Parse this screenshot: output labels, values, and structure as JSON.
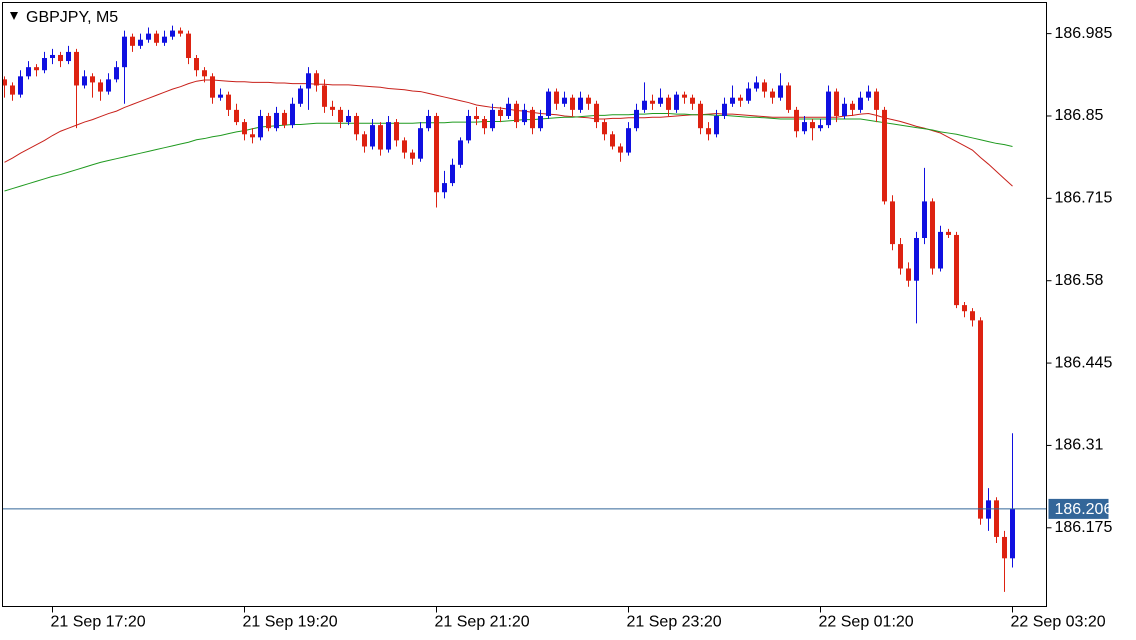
{
  "chart_data": {
    "type": "candlestick",
    "title": "GBPJPY, M5",
    "up_color": "#1010e0",
    "down_color": "#dd2211",
    "price_line_color": "#336699",
    "ylim": [
      186.046,
      187.036
    ],
    "yticks": [
      186.175,
      186.31,
      186.445,
      186.58,
      186.715,
      186.85,
      186.985
    ],
    "categories": [
      null,
      null,
      null,
      null,
      null,
      null,
      "21 Sep 17:20",
      null,
      null,
      null,
      null,
      null,
      null,
      null,
      null,
      null,
      null,
      null,
      null,
      null,
      null,
      null,
      null,
      null,
      null,
      null,
      null,
      null,
      null,
      null,
      "21 Sep 19:20",
      null,
      null,
      null,
      null,
      null,
      null,
      null,
      null,
      null,
      null,
      null,
      null,
      null,
      null,
      null,
      null,
      null,
      null,
      null,
      null,
      null,
      null,
      null,
      "21 Sep 21:20",
      null,
      null,
      null,
      null,
      null,
      null,
      null,
      null,
      null,
      null,
      null,
      null,
      null,
      null,
      null,
      null,
      null,
      null,
      null,
      null,
      null,
      null,
      null,
      "21 Sep 23:20",
      null,
      null,
      null,
      null,
      null,
      null,
      null,
      null,
      null,
      null,
      null,
      null,
      null,
      null,
      null,
      null,
      null,
      null,
      null,
      null,
      null,
      null,
      null,
      "22 Sep 01:20",
      null,
      null,
      null,
      null,
      null,
      null,
      null,
      null,
      null,
      null,
      null,
      null,
      null,
      null,
      null,
      null,
      null,
      null,
      null,
      null,
      null,
      null,
      null,
      "22 Sep 03:20"
    ],
    "candles": [
      [
        186.91,
        186.915,
        186.88,
        186.9
      ],
      [
        186.9,
        186.905,
        186.875,
        186.885
      ],
      [
        186.885,
        186.925,
        186.88,
        186.915
      ],
      [
        186.915,
        186.94,
        186.91,
        186.93
      ],
      [
        186.93,
        186.935,
        186.915,
        186.925
      ],
      [
        186.925,
        186.955,
        186.92,
        186.945
      ],
      [
        186.945,
        186.96,
        186.935,
        186.95
      ],
      [
        186.95,
        186.955,
        186.93,
        186.94
      ],
      [
        186.94,
        186.965,
        186.935,
        186.955
      ],
      [
        186.955,
        186.96,
        186.83,
        186.9
      ],
      [
        186.9,
        186.925,
        186.895,
        186.915
      ],
      [
        186.915,
        186.92,
        186.88,
        186.905
      ],
      [
        186.905,
        186.91,
        186.875,
        186.89
      ],
      [
        186.89,
        186.92,
        186.885,
        186.91
      ],
      [
        186.91,
        186.94,
        186.905,
        186.93
      ],
      [
        186.93,
        186.99,
        186.87,
        186.98
      ],
      [
        186.98,
        186.985,
        186.955,
        186.965
      ],
      [
        186.965,
        186.985,
        186.96,
        186.975
      ],
      [
        186.975,
        186.995,
        186.97,
        186.985
      ],
      [
        186.985,
        186.99,
        186.965,
        186.97
      ],
      [
        186.97,
        186.99,
        186.965,
        186.98
      ],
      [
        186.98,
        186.998,
        186.975,
        186.99
      ],
      [
        186.99,
        186.995,
        186.98,
        186.985
      ],
      [
        186.985,
        186.99,
        186.935,
        186.945
      ],
      [
        186.945,
        186.95,
        186.915,
        186.925
      ],
      [
        186.925,
        186.93,
        186.905,
        186.915
      ],
      [
        186.915,
        186.92,
        186.87,
        186.88
      ],
      [
        186.88,
        186.895,
        186.875,
        186.885
      ],
      [
        186.885,
        186.89,
        186.85,
        186.86
      ],
      [
        186.86,
        186.87,
        186.835,
        186.84
      ],
      [
        186.84,
        186.845,
        186.81,
        186.82
      ],
      [
        186.82,
        186.83,
        186.805,
        186.815
      ],
      [
        186.815,
        186.86,
        186.81,
        186.85
      ],
      [
        186.85,
        186.855,
        186.825,
        186.83
      ],
      [
        186.83,
        186.865,
        186.825,
        186.855
      ],
      [
        186.855,
        186.86,
        186.83,
        186.835
      ],
      [
        186.835,
        186.88,
        186.83,
        186.87
      ],
      [
        186.87,
        186.9,
        186.865,
        186.895
      ],
      [
        186.895,
        186.93,
        186.86,
        186.92
      ],
      [
        186.92,
        186.925,
        186.89,
        186.9
      ],
      [
        186.9,
        186.91,
        186.855,
        186.865
      ],
      [
        186.865,
        186.875,
        186.85,
        186.86
      ],
      [
        186.86,
        186.865,
        186.83,
        186.84
      ],
      [
        186.84,
        186.86,
        186.835,
        186.85
      ],
      [
        186.85,
        186.855,
        186.81,
        186.82
      ],
      [
        186.82,
        186.825,
        186.79,
        186.8
      ],
      [
        186.8,
        186.845,
        186.795,
        186.835
      ],
      [
        186.835,
        186.84,
        186.785,
        186.795
      ],
      [
        186.795,
        186.85,
        186.79,
        186.84
      ],
      [
        186.84,
        186.845,
        186.8,
        186.81
      ],
      [
        186.81,
        186.815,
        186.78,
        186.79
      ],
      [
        186.79,
        186.795,
        186.77,
        186.78
      ],
      [
        186.78,
        186.84,
        186.775,
        186.83
      ],
      [
        186.83,
        186.86,
        186.825,
        186.85
      ],
      [
        186.85,
        186.855,
        186.7,
        186.725
      ],
      [
        186.725,
        186.76,
        186.715,
        186.74
      ],
      [
        186.74,
        186.78,
        186.735,
        186.77
      ],
      [
        186.77,
        186.815,
        186.765,
        186.81
      ],
      [
        186.81,
        186.86,
        186.805,
        186.85
      ],
      [
        186.85,
        186.865,
        186.835,
        186.845
      ],
      [
        186.845,
        186.85,
        186.82,
        186.83
      ],
      [
        186.83,
        186.87,
        186.825,
        186.86
      ],
      [
        186.86,
        186.865,
        186.84,
        186.85
      ],
      [
        186.85,
        186.88,
        186.845,
        186.87
      ],
      [
        186.87,
        186.875,
        186.83,
        186.84
      ],
      [
        186.84,
        186.87,
        186.835,
        186.86
      ],
      [
        186.86,
        186.865,
        186.82,
        186.83
      ],
      [
        186.83,
        186.86,
        186.825,
        186.85
      ],
      [
        186.85,
        186.895,
        186.845,
        186.89
      ],
      [
        186.89,
        186.895,
        186.86,
        186.87
      ],
      [
        186.87,
        186.89,
        186.865,
        186.88
      ],
      [
        186.88,
        186.885,
        186.85,
        186.86
      ],
      [
        186.86,
        186.89,
        186.855,
        186.88
      ],
      [
        186.88,
        186.885,
        186.86,
        186.87
      ],
      [
        186.87,
        186.875,
        186.83,
        186.84
      ],
      [
        186.84,
        186.845,
        186.81,
        186.82
      ],
      [
        186.82,
        186.825,
        186.795,
        186.8
      ],
      [
        186.8,
        186.805,
        186.775,
        186.79
      ],
      [
        186.79,
        186.84,
        186.785,
        186.83
      ],
      [
        186.83,
        186.87,
        186.825,
        186.86
      ],
      [
        186.86,
        186.905,
        186.855,
        186.875
      ],
      [
        186.875,
        186.885,
        186.86,
        186.87
      ],
      [
        186.87,
        186.895,
        186.865,
        186.88
      ],
      [
        186.88,
        186.885,
        186.85,
        186.86
      ],
      [
        186.86,
        186.89,
        186.855,
        186.885
      ],
      [
        186.885,
        186.89,
        186.87,
        186.88
      ],
      [
        186.88,
        186.885,
        186.86,
        186.87
      ],
      [
        186.87,
        186.875,
        186.82,
        186.83
      ],
      [
        186.83,
        186.84,
        186.81,
        186.82
      ],
      [
        186.82,
        186.86,
        186.815,
        186.85
      ],
      [
        186.85,
        186.88,
        186.845,
        186.87
      ],
      [
        186.87,
        186.9,
        186.865,
        186.88
      ],
      [
        186.88,
        186.885,
        186.865,
        186.875
      ],
      [
        186.875,
        186.905,
        186.87,
        186.895
      ],
      [
        186.895,
        186.915,
        186.89,
        186.905
      ],
      [
        186.905,
        186.91,
        186.88,
        186.89
      ],
      [
        186.89,
        186.895,
        186.87,
        186.88
      ],
      [
        186.88,
        186.92,
        186.875,
        186.9
      ],
      [
        186.9,
        186.905,
        186.855,
        186.86
      ],
      [
        186.86,
        186.865,
        186.815,
        186.825
      ],
      [
        186.825,
        186.85,
        186.82,
        186.84
      ],
      [
        186.84,
        186.845,
        186.81,
        186.83
      ],
      [
        186.83,
        186.845,
        186.825,
        186.835
      ],
      [
        186.835,
        186.9,
        186.83,
        186.89
      ],
      [
        186.89,
        186.895,
        186.84,
        186.85
      ],
      [
        186.85,
        186.88,
        186.845,
        186.87
      ],
      [
        186.87,
        186.875,
        186.85,
        186.86
      ],
      [
        186.86,
        186.89,
        186.855,
        186.88
      ],
      [
        186.88,
        186.9,
        186.875,
        186.89
      ],
      [
        186.89,
        186.895,
        186.84,
        186.86
      ],
      [
        186.86,
        186.865,
        186.705,
        186.71
      ],
      [
        186.71,
        186.72,
        186.63,
        186.64
      ],
      [
        186.64,
        186.65,
        186.59,
        186.6
      ],
      [
        186.6,
        186.61,
        186.57,
        186.58
      ],
      [
        186.58,
        186.66,
        186.51,
        186.65
      ],
      [
        186.65,
        186.765,
        186.64,
        186.71
      ],
      [
        186.71,
        186.715,
        186.59,
        186.6
      ],
      [
        186.6,
        186.67,
        186.595,
        186.66
      ],
      [
        186.66,
        186.665,
        186.65,
        186.655
      ],
      [
        186.655,
        186.66,
        186.535,
        186.54
      ],
      [
        186.54,
        186.545,
        186.52,
        186.53
      ],
      [
        186.53,
        186.535,
        186.505,
        186.515
      ],
      [
        186.515,
        186.52,
        186.18,
        186.19
      ],
      [
        186.19,
        186.24,
        186.17,
        186.22
      ],
      [
        186.22,
        186.225,
        186.15,
        186.16
      ],
      [
        186.16,
        186.17,
        186.07,
        186.125
      ],
      [
        186.125,
        186.33,
        186.11,
        186.206
      ]
    ],
    "series": [
      {
        "color": "#c8201a",
        "values": [
          186.774,
          186.781,
          186.789,
          186.796,
          186.803,
          186.81,
          186.818,
          186.825,
          186.83,
          186.835,
          186.84,
          186.844,
          186.849,
          186.854,
          186.858,
          186.864,
          186.869,
          186.874,
          186.879,
          186.884,
          186.889,
          186.894,
          186.898,
          186.903,
          186.907,
          186.909,
          186.909,
          186.908,
          186.907,
          186.906,
          186.906,
          186.905,
          186.905,
          186.905,
          186.904,
          186.904,
          186.903,
          186.903,
          186.903,
          186.902,
          186.902,
          186.901,
          186.901,
          186.901,
          186.9,
          186.899,
          186.898,
          186.897,
          186.895,
          186.894,
          186.893,
          186.891,
          186.89,
          186.887,
          186.884,
          186.881,
          186.878,
          186.875,
          186.872,
          186.868,
          186.866,
          186.864,
          186.863,
          186.861,
          186.859,
          186.858,
          186.856,
          186.854,
          186.853,
          186.852,
          186.85,
          186.849,
          186.848,
          186.847,
          186.845,
          186.845,
          186.846,
          186.846,
          186.847,
          186.847,
          186.847,
          186.848,
          186.848,
          186.849,
          186.85,
          186.851,
          186.852,
          186.852,
          186.853,
          186.854,
          186.853,
          186.853,
          186.852,
          186.851,
          186.85,
          186.849,
          186.848,
          186.848,
          186.848,
          186.848,
          186.848,
          186.848,
          186.848,
          186.848,
          186.848,
          186.85,
          186.851,
          186.853,
          186.854,
          186.851,
          186.847,
          186.844,
          186.841,
          186.837,
          186.833,
          186.83,
          186.826,
          186.822,
          186.815,
          186.808,
          186.801,
          186.794,
          186.782,
          186.771,
          186.759,
          186.747,
          186.735
        ]
      },
      {
        "color": "#1f9a1f",
        "values": [
          186.727,
          186.731,
          186.735,
          186.739,
          186.743,
          186.747,
          186.751,
          186.754,
          186.758,
          186.762,
          186.766,
          186.77,
          186.774,
          186.777,
          186.78,
          186.783,
          186.786,
          186.789,
          186.792,
          186.795,
          186.798,
          186.801,
          186.804,
          186.807,
          186.811,
          186.813,
          186.816,
          186.818,
          186.821,
          186.824,
          186.826,
          186.829,
          186.832,
          186.833,
          186.834,
          186.835,
          186.836,
          186.836,
          186.837,
          186.838,
          186.838,
          186.838,
          186.838,
          186.838,
          186.838,
          186.838,
          186.838,
          186.838,
          186.838,
          186.838,
          186.838,
          186.838,
          186.839,
          186.839,
          186.839,
          186.839,
          186.84,
          186.84,
          186.84,
          186.84,
          186.841,
          186.841,
          186.841,
          186.842,
          186.843,
          186.844,
          186.844,
          186.845,
          186.846,
          186.847,
          186.848,
          186.848,
          186.849,
          186.85,
          186.851,
          186.851,
          186.852,
          186.852,
          186.852,
          186.853,
          186.853,
          186.854,
          186.854,
          186.854,
          186.853,
          186.853,
          186.852,
          186.852,
          186.852,
          186.851,
          186.851,
          186.85,
          186.849,
          186.848,
          186.848,
          186.847,
          186.846,
          186.845,
          186.845,
          186.845,
          186.845,
          186.845,
          186.845,
          186.845,
          186.845,
          186.845,
          186.845,
          186.845,
          186.843,
          186.841,
          186.839,
          186.837,
          186.835,
          186.833,
          186.831,
          186.829,
          186.827,
          186.824,
          186.822,
          186.82,
          186.817,
          186.814,
          186.811,
          186.808,
          186.805,
          186.803,
          186.8
        ]
      }
    ]
  }
}
